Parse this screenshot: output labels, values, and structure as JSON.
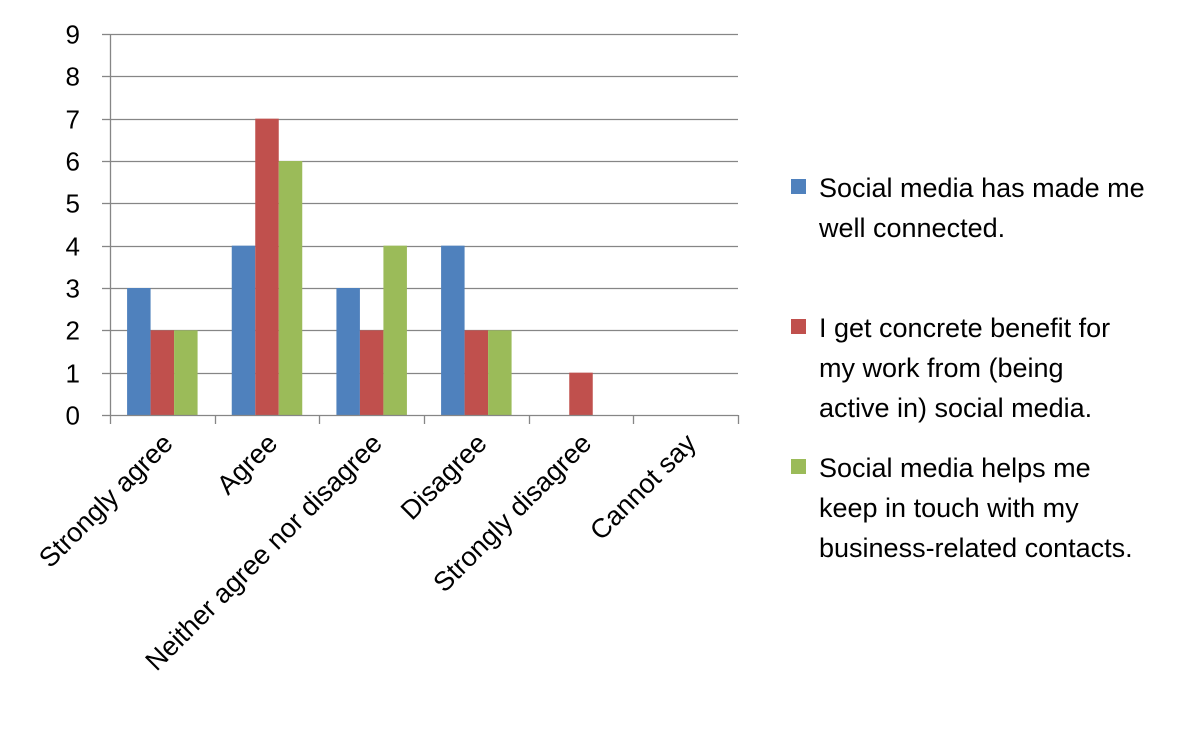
{
  "chart_data": {
    "type": "bar",
    "title": "",
    "xlabel": "",
    "ylabel": "",
    "ylim": [
      0,
      9
    ],
    "yticks": [
      "0",
      "1",
      "2",
      "3",
      "4",
      "5",
      "6",
      "7",
      "8",
      "9"
    ],
    "grid": true,
    "legend_position": "right",
    "categories": [
      "Strongly agree",
      "Agree",
      "Neither agree nor disagree",
      "Disagree",
      "Strongly disagree",
      "Cannot say"
    ],
    "series": [
      {
        "name": "Social media has made me well connected.",
        "legend_lines": [
          "Social media has made me",
          "well connected."
        ],
        "color": "#4F81BD",
        "values": [
          3,
          4,
          3,
          4,
          0,
          0
        ]
      },
      {
        "name": "I get concrete benefit for my work from (being active in) social media.",
        "legend_lines": [
          "I get concrete benefit for",
          "my work from (being",
          "active in) social media."
        ],
        "color": "#C0504D",
        "values": [
          2,
          7,
          2,
          2,
          1,
          0
        ]
      },
      {
        "name": "Social media helps me keep in touch with my business-related contacts.",
        "legend_lines": [
          "Social media helps me",
          "keep in touch with my",
          "business-related contacts."
        ],
        "color": "#9BBB59",
        "values": [
          2,
          6,
          4,
          2,
          0,
          0
        ]
      }
    ]
  }
}
